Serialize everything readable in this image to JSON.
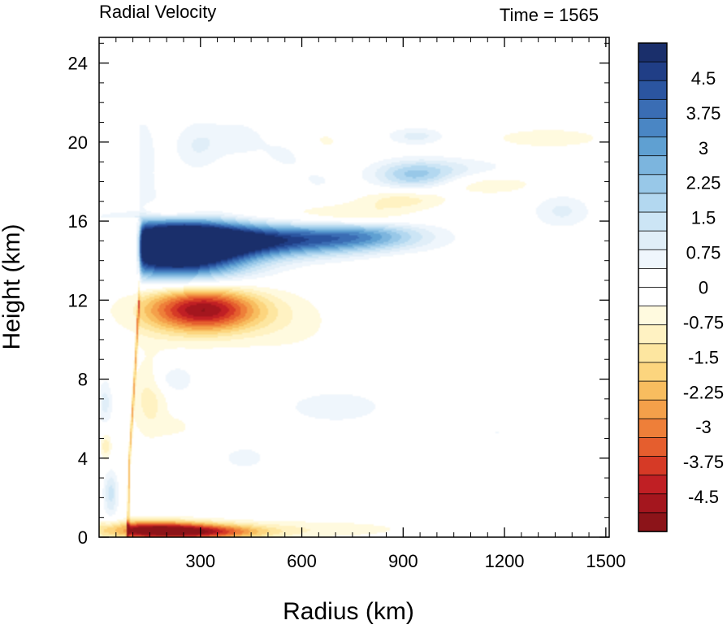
{
  "chart_data": {
    "type": "heatmap",
    "title": "Radial Velocity",
    "subtitle": "Time = 1565",
    "xlabel": "Radius (km)",
    "ylabel": "Height (km)",
    "xlim": [
      0,
      1510
    ],
    "ylim": [
      0,
      25.3
    ],
    "xticks": [
      300,
      600,
      900,
      1200,
      1500
    ],
    "yticks": [
      0,
      4,
      8,
      12,
      16,
      20,
      24
    ],
    "colorbar": {
      "levels": [
        -5.25,
        5.25
      ],
      "tick_values": [
        4.5,
        3.75,
        3,
        2.25,
        1.5,
        0.75,
        0,
        -0.75,
        -1.5,
        -2.25,
        -3,
        -3.75,
        -4.5
      ],
      "tick_labels": [
        "4.5",
        "3.75",
        "3",
        "2.25",
        "1.5",
        "0.75",
        "0",
        "-0.75",
        "-1.5",
        "-2.25",
        "-3",
        "-3.75",
        "-4.5"
      ],
      "colors": [
        "#1a2f6b",
        "#203e86",
        "#2b55a0",
        "#3a6db4",
        "#4a86c4",
        "#5fa0d2",
        "#7cb5de",
        "#98c8e8",
        "#b3d8f0",
        "#cce5f5",
        "#e0eef8",
        "#eff6fc",
        "#ffffff",
        "#ffffff",
        "#fffadf",
        "#fff2c2",
        "#fde6a0",
        "#fcd57e",
        "#f8bd5f",
        "#f4a04a",
        "#ee7f39",
        "#e55e2e",
        "#d63a26",
        "#c01f24",
        "#a4161e",
        "#8c1419"
      ]
    },
    "features": [
      {
        "r": 230,
        "z": 14.6,
        "sr": 150,
        "sz": 1.1,
        "v": 7.5
      },
      {
        "r": 500,
        "z": 15.0,
        "sr": 230,
        "sz": 0.55,
        "v": 4.0
      },
      {
        "r": 780,
        "z": 15.3,
        "sr": 130,
        "sz": 0.45,
        "v": 1.8
      },
      {
        "r": 320,
        "z": 11.5,
        "sr": 110,
        "sz": 0.75,
        "v": -3.6
      },
      {
        "r": 230,
        "z": 11.8,
        "sr": 150,
        "sz": 1.2,
        "v": -1.6
      },
      {
        "r": 560,
        "z": 10.8,
        "sr": 120,
        "sz": 1.2,
        "v": -0.5
      },
      {
        "r": 200,
        "z": 16.5,
        "sr": 70,
        "sz": 0.35,
        "v": -1.4
      },
      {
        "r": 380,
        "z": 16.4,
        "sr": 150,
        "sz": 0.4,
        "v": -0.8
      },
      {
        "r": 760,
        "z": 16.3,
        "sr": 120,
        "sz": 0.4,
        "v": -0.9
      },
      {
        "r": 900,
        "z": 17.1,
        "sr": 90,
        "sz": 0.35,
        "v": -1.0
      },
      {
        "r": 930,
        "z": 18.3,
        "sr": 80,
        "sz": 0.5,
        "v": 1.8
      },
      {
        "r": 1050,
        "z": 18.6,
        "sr": 130,
        "sz": 0.45,
        "v": 0.8
      },
      {
        "r": 1150,
        "z": 17.9,
        "sr": 110,
        "sz": 0.4,
        "v": -0.8
      },
      {
        "r": 1370,
        "z": 16.5,
        "sr": 60,
        "sz": 0.6,
        "v": 0.9
      },
      {
        "r": 1330,
        "z": 20.2,
        "sr": 150,
        "sz": 0.45,
        "v": -0.6
      },
      {
        "r": 940,
        "z": 20.3,
        "sr": 60,
        "sz": 0.3,
        "v": 1.0
      },
      {
        "r": 290,
        "z": 19.8,
        "sr": 50,
        "sz": 0.9,
        "v": 0.8
      },
      {
        "r": 410,
        "z": 20.2,
        "sr": 60,
        "sz": 0.7,
        "v": 0.6
      },
      {
        "r": 560,
        "z": 19.4,
        "sr": 60,
        "sz": 0.7,
        "v": 0.5
      },
      {
        "r": 650,
        "z": 18.0,
        "sr": 60,
        "sz": 0.6,
        "v": 0.4
      },
      {
        "r": 660,
        "z": 20.0,
        "sr": 60,
        "sz": 0.6,
        "v": -0.5
      },
      {
        "r": 130,
        "z": 19.0,
        "sr": 30,
        "sz": 1.8,
        "v": 0.7
      },
      {
        "r": 18,
        "z": 6.8,
        "sr": 15,
        "sz": 0.8,
        "v": 1.8
      },
      {
        "r": 20,
        "z": 4.6,
        "sr": 12,
        "sz": 0.5,
        "v": -2.0
      },
      {
        "r": 35,
        "z": 2.2,
        "sr": 15,
        "sz": 0.8,
        "v": 2.5
      },
      {
        "r": 150,
        "z": 7.0,
        "sr": 40,
        "sz": 1.4,
        "v": -1.0
      },
      {
        "r": 220,
        "z": 8.0,
        "sr": 40,
        "sz": 0.5,
        "v": 0.9
      },
      {
        "r": 700,
        "z": 6.6,
        "sr": 180,
        "sz": 1.0,
        "v": 0.5
      },
      {
        "r": 1180,
        "z": 5.3,
        "sr": 40,
        "sz": 0.6,
        "v": 0.4
      },
      {
        "r": 1390,
        "z": 4.6,
        "sr": 40,
        "sz": 0.4,
        "v": 0.3
      },
      {
        "r": 430,
        "z": 4.0,
        "sr": 70,
        "sz": 0.6,
        "v": 0.5
      },
      {
        "r": 150,
        "z": 0.35,
        "sr": 130,
        "sz": 0.32,
        "v": -5.0
      },
      {
        "r": 330,
        "z": 0.25,
        "sr": 120,
        "sz": 0.25,
        "v": -2.5
      },
      {
        "r": 600,
        "z": 0.4,
        "sr": 250,
        "sz": 0.35,
        "v": -0.7
      },
      {
        "r": 230,
        "z": 5.6,
        "sr": 40,
        "sz": 0.4,
        "v": -0.5
      },
      {
        "r": 900,
        "z": 13.5,
        "sr": 80,
        "sz": 0.6,
        "v": -0.3
      }
    ],
    "core_boundary": [
      {
        "z": 0.0,
        "r": 85
      },
      {
        "z": 4.0,
        "r": 90
      },
      {
        "z": 8.0,
        "r": 105
      },
      {
        "z": 12.0,
        "r": 118
      },
      {
        "z": 16.0,
        "r": 120
      },
      {
        "z": 21.0,
        "r": 120
      }
    ]
  }
}
